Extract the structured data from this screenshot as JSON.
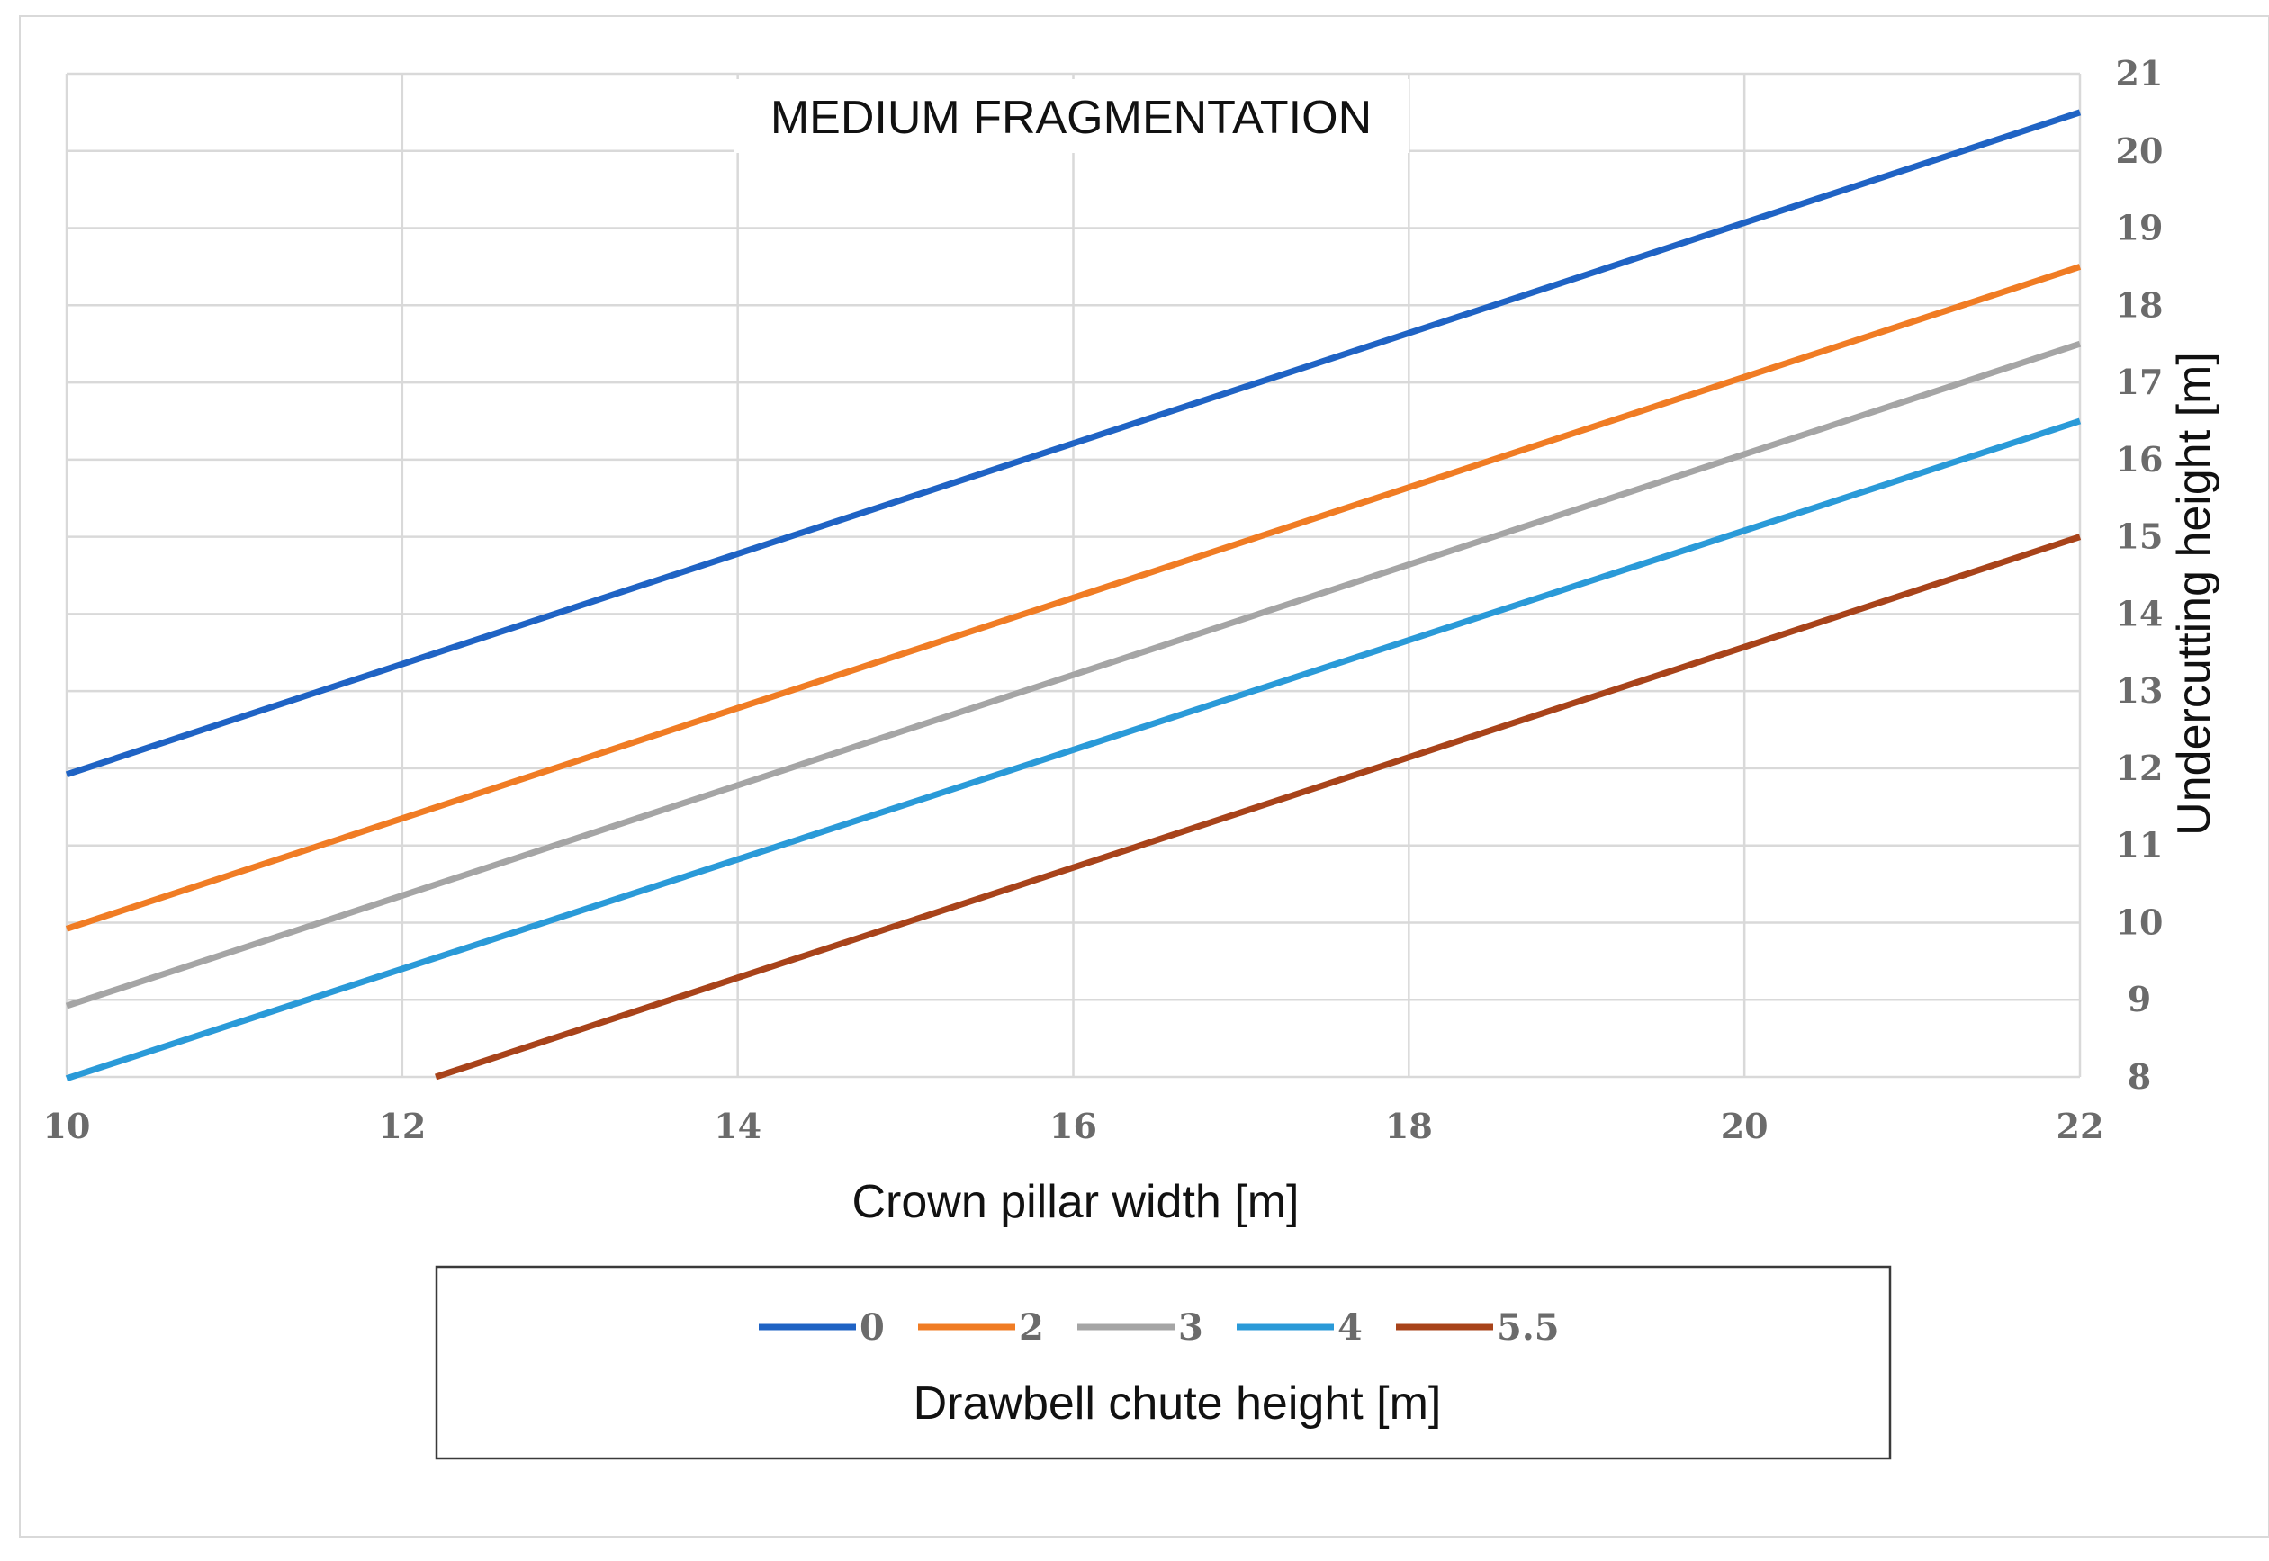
{
  "chart_data": {
    "type": "line",
    "title": "MEDIUM FRAGMENTATION",
    "xlabel": "Crown pillar width [m]",
    "ylabel": "Undercutting height [m]",
    "xlim": [
      10,
      22
    ],
    "ylim": [
      8,
      21
    ],
    "x_ticks": [
      "10",
      "12",
      "14",
      "16",
      "18",
      "20",
      "22"
    ],
    "y_ticks": [
      "8",
      "9",
      "10",
      "11",
      "12",
      "13",
      "14",
      "15",
      "16",
      "17",
      "18",
      "19",
      "20",
      "21"
    ],
    "grid": true,
    "legend_position": "bottom",
    "legend_title": "Drawbell chute height [m]",
    "series": [
      {
        "name": "0",
        "color": "#1f63c4",
        "x": [
          10,
          22
        ],
        "y": [
          11.92,
          20.5
        ]
      },
      {
        "name": "2",
        "color": "#f07c24",
        "x": [
          10,
          22
        ],
        "y": [
          9.92,
          18.5
        ]
      },
      {
        "name": "3",
        "color": "#a5a5a5",
        "x": [
          10,
          22
        ],
        "y": [
          8.92,
          17.5
        ]
      },
      {
        "name": "4",
        "color": "#2a9ad8",
        "x": [
          10,
          22
        ],
        "y": [
          7.98,
          16.5
        ]
      },
      {
        "name": "5.5",
        "color": "#a8431a",
        "x": [
          12.2,
          22
        ],
        "y": [
          8.0,
          15.0
        ]
      }
    ]
  }
}
